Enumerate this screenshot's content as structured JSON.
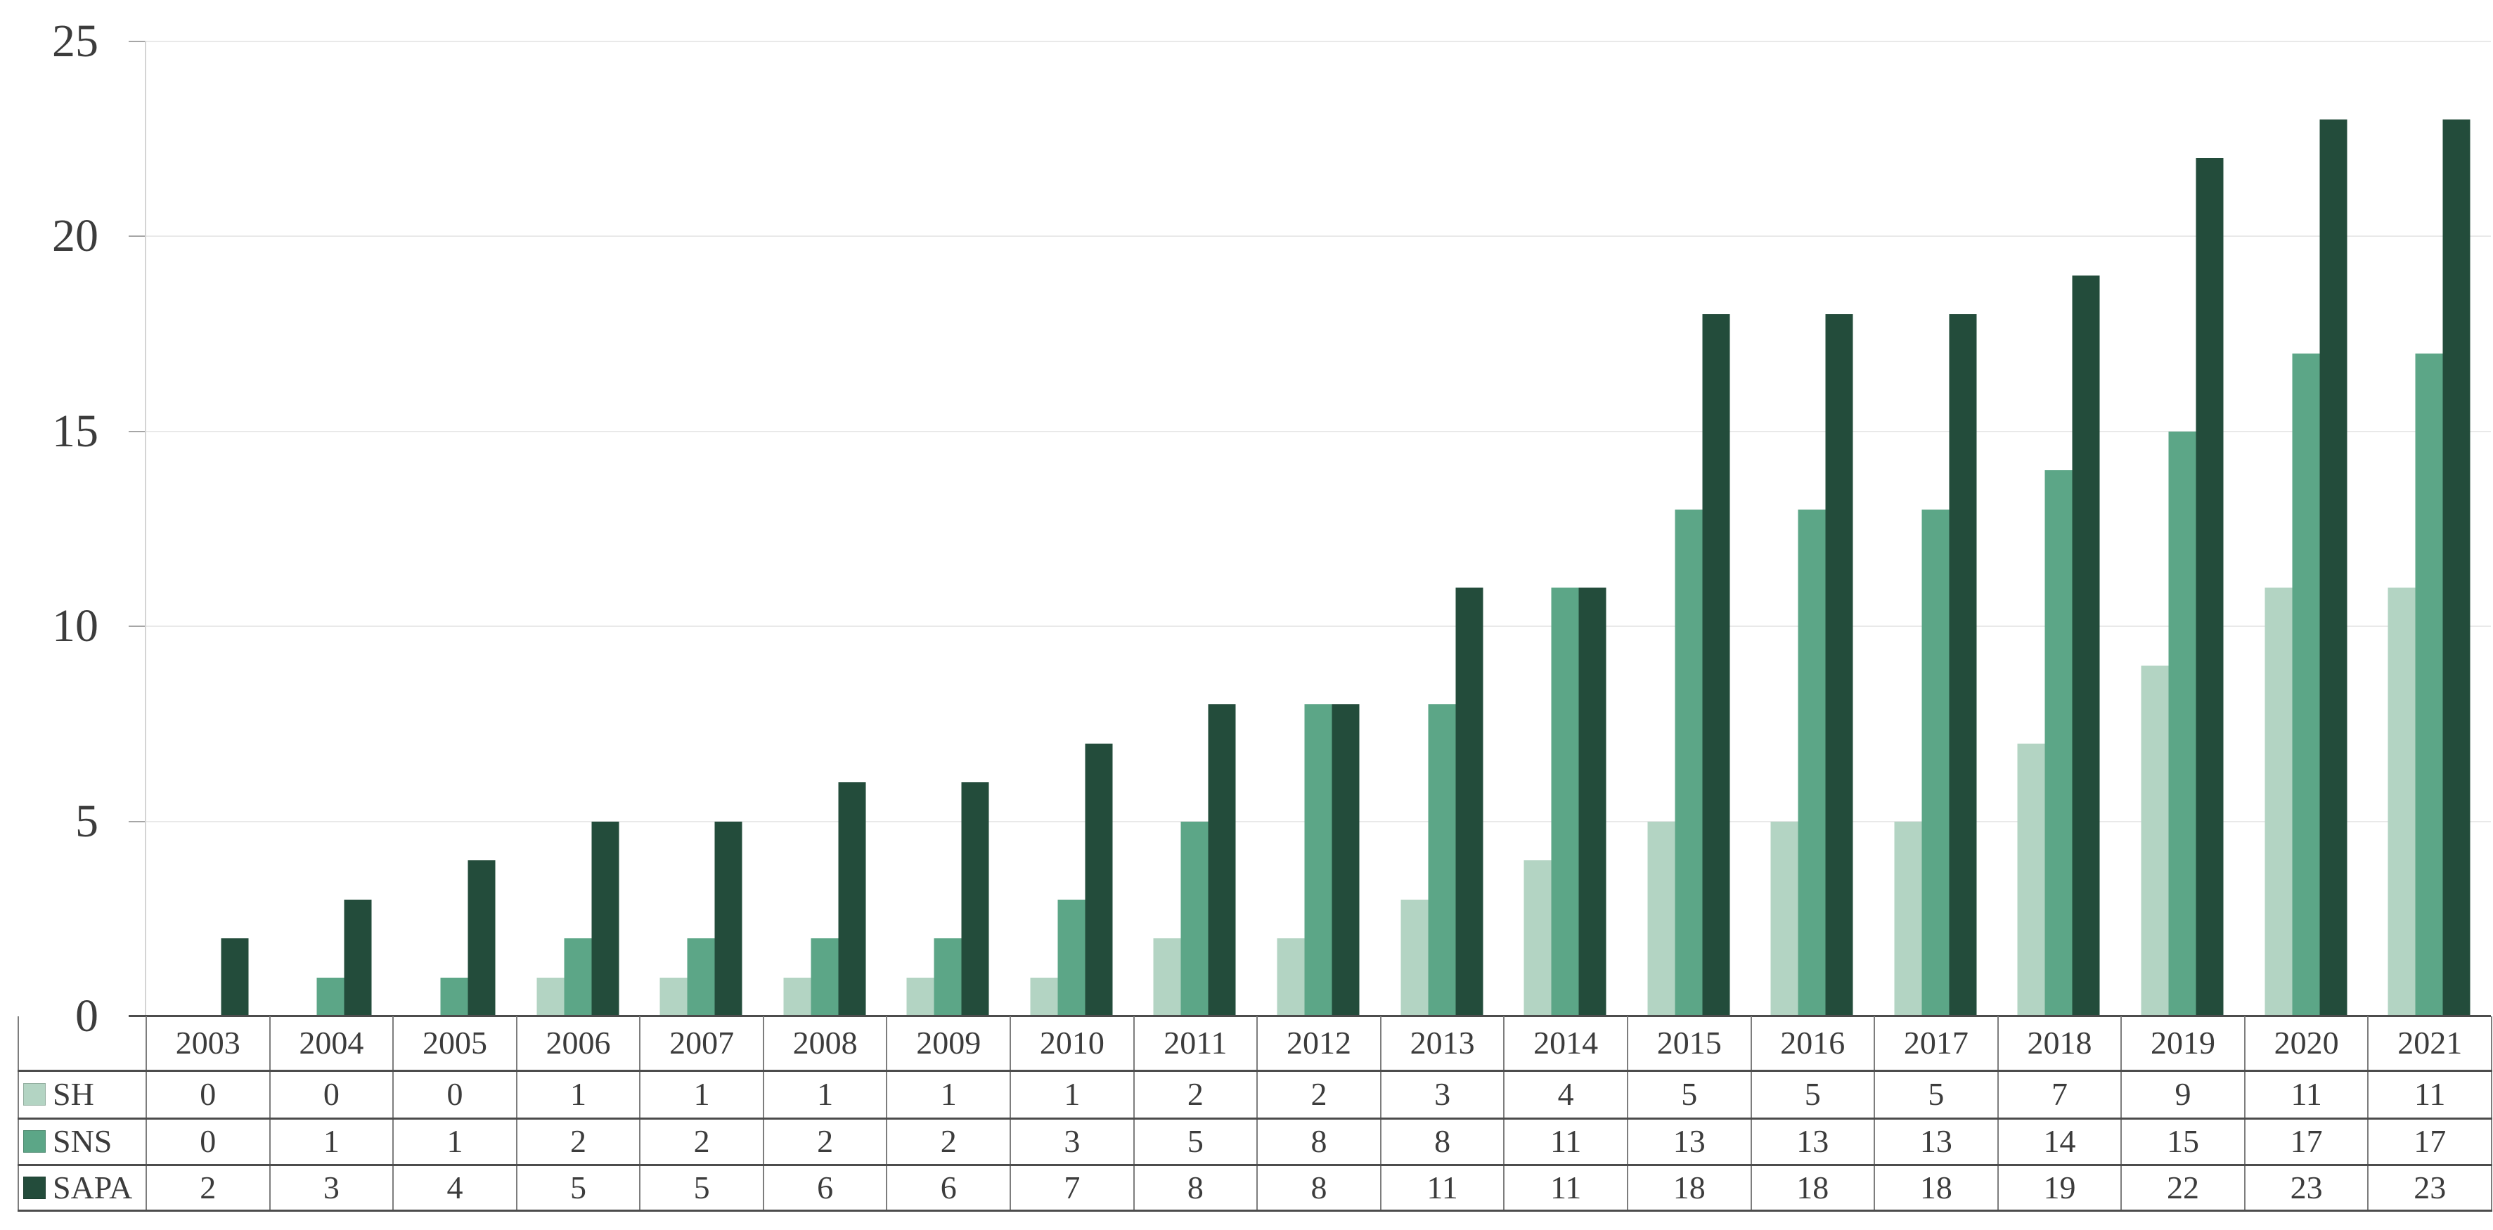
{
  "chart_data": {
    "type": "bar",
    "title": "",
    "categories": [
      "2003",
      "2004",
      "2005",
      "2006",
      "2007",
      "2008",
      "2009",
      "2010",
      "2011",
      "2012",
      "2013",
      "2014",
      "2015",
      "2016",
      "2017",
      "2018",
      "2019",
      "2020",
      "2021"
    ],
    "series": [
      {
        "name": "SH",
        "color": "#b3d4c3",
        "values": [
          0,
          0,
          0,
          1,
          1,
          1,
          1,
          1,
          2,
          2,
          3,
          4,
          5,
          5,
          5,
          7,
          9,
          11,
          11
        ]
      },
      {
        "name": "SNS",
        "color": "#5ca687",
        "values": [
          0,
          1,
          1,
          2,
          2,
          2,
          2,
          3,
          5,
          8,
          8,
          11,
          13,
          13,
          13,
          14,
          15,
          17,
          17
        ]
      },
      {
        "name": "SAPA",
        "color": "#234c3b",
        "values": [
          2,
          3,
          4,
          5,
          5,
          6,
          6,
          7,
          8,
          8,
          11,
          11,
          18,
          18,
          18,
          19,
          22,
          23,
          23
        ]
      }
    ],
    "xlabel": "",
    "ylabel": "",
    "ylim": [
      0,
      25
    ],
    "yticks": [
      0,
      5,
      10,
      15,
      20,
      25
    ],
    "grid": true,
    "legend_position": "left column of data table below chart",
    "style_colors": {
      "gridline": "#e9e9e9",
      "axis_tick": "#a6a6a6",
      "y_axis_line": "#d4d4d4",
      "x_axis_line": "#4c4c4c",
      "table_border_vertical": "#7d7d7d",
      "table_border_horizontal": "#4c4c4c",
      "text": "#3c3c3c",
      "background": "#ffffff"
    }
  }
}
